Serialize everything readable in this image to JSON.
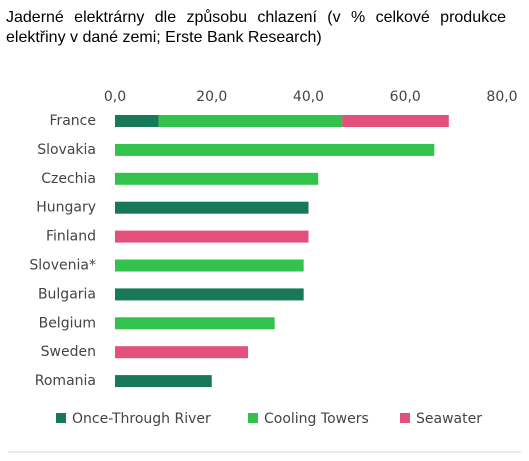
{
  "chart_data": {
    "type": "stacked-barh",
    "title": "Jaderné elektrárny dle způsobu chlazení (v % celkové produkce elektřiny v dané zemi; Erste Bank Research)",
    "categories": [
      "France",
      "Slovakia",
      "Czechia",
      "Hungary",
      "Finland",
      "Slovenia*",
      "Bulgaria",
      "Belgium",
      "Sweden",
      "Romania"
    ],
    "series": [
      {
        "name": "Once-Through River",
        "color": "#17785a",
        "values": [
          9,
          null,
          null,
          40,
          null,
          null,
          39,
          null,
          null,
          20
        ]
      },
      {
        "name": "Cooling Towers",
        "color": "#33c24b",
        "values": [
          38,
          66,
          42,
          null,
          null,
          39,
          null,
          33,
          null,
          null
        ]
      },
      {
        "name": "Seawater",
        "color": "#e2507b",
        "values": [
          22,
          null,
          null,
          null,
          40,
          null,
          null,
          null,
          27.5,
          null
        ]
      }
    ],
    "xlim": [
      0,
      80
    ],
    "xticks": [
      {
        "value": 0,
        "label": "0,0"
      },
      {
        "value": 20,
        "label": "20,0"
      },
      {
        "value": 40,
        "label": "40,0"
      },
      {
        "value": 60,
        "label": "60,0"
      },
      {
        "value": 80,
        "label": "80,0"
      }
    ],
    "legend": "bottom"
  }
}
